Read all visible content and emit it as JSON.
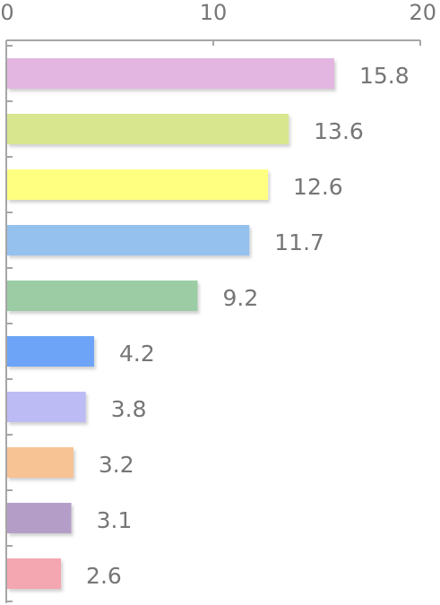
{
  "chart_data": {
    "type": "bar",
    "orientation": "horizontal",
    "title": "",
    "xlabel": "",
    "ylabel": "",
    "xlim": [
      0,
      20
    ],
    "x_ticks": [
      {
        "value": 0,
        "label": "0"
      },
      {
        "value": 10,
        "label": "10"
      },
      {
        "value": 20,
        "label": "20"
      }
    ],
    "grid": false,
    "legend": "none",
    "bars": [
      {
        "value": 15.8,
        "label": "15.8",
        "color": "#e2b6e0"
      },
      {
        "value": 13.6,
        "label": "13.6",
        "color": "#d8e68e"
      },
      {
        "value": 12.6,
        "label": "12.6",
        "color": "#ffff80"
      },
      {
        "value": 11.7,
        "label": "11.7",
        "color": "#95c1ef"
      },
      {
        "value": 9.2,
        "label": "9.2",
        "color": "#9bcca4"
      },
      {
        "value": 4.2,
        "label": "4.2",
        "color": "#6ea4f7"
      },
      {
        "value": 3.8,
        "label": "3.8",
        "color": "#bcbbf4"
      },
      {
        "value": 3.2,
        "label": "3.2",
        "color": "#f7c294"
      },
      {
        "value": 3.1,
        "label": "3.1",
        "color": "#b49ec8"
      },
      {
        "value": 2.6,
        "label": "2.6",
        "color": "#f4a6b1"
      }
    ],
    "axis_color": "#a6a6a6"
  }
}
